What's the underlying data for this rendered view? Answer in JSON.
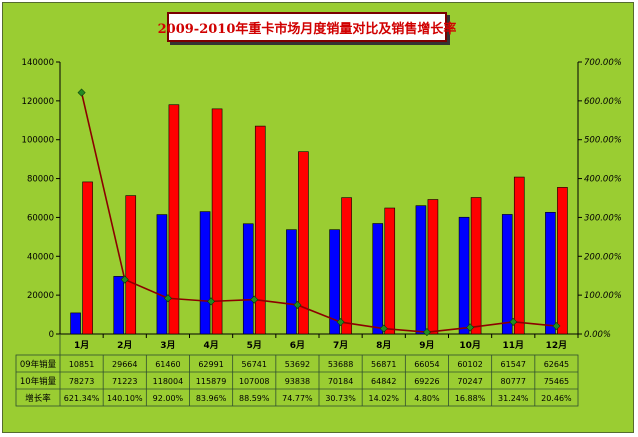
{
  "chart_data": {
    "type": "bar",
    "title": "2009-2010年重卡市场月度销量对比及销售增长率",
    "categories": [
      "1月",
      "2月",
      "3月",
      "4月",
      "5月",
      "6月",
      "7月",
      "8月",
      "9月",
      "10月",
      "11月",
      "12月"
    ],
    "series": [
      {
        "name": "09年销量",
        "type": "bar",
        "color": "#0000ff",
        "axis": "left",
        "values": [
          10851,
          29664,
          61460,
          62991,
          56741,
          53692,
          53688,
          56871,
          66054,
          60102,
          61547,
          62645
        ]
      },
      {
        "name": "10年销量",
        "type": "bar",
        "color": "#ff0000",
        "axis": "left",
        "values": [
          78273,
          71223,
          118004,
          115879,
          107008,
          93838,
          70184,
          64842,
          69226,
          70247,
          80777,
          75465
        ]
      },
      {
        "name": "增长率",
        "type": "line",
        "color": "#8b0000",
        "marker_color": "#228b22",
        "axis": "right",
        "values": [
          621.34,
          140.1,
          92.0,
          83.96,
          88.59,
          74.77,
          30.73,
          14.02,
          4.8,
          16.88,
          31.24,
          20.46
        ]
      }
    ],
    "ylim_left": [
      0,
      140000
    ],
    "left_ticks": [
      "0",
      "20000",
      "40000",
      "60000",
      "80000",
      "100000",
      "120000",
      "140000"
    ],
    "ylim_right": [
      0,
      700
    ],
    "right_ticks": [
      "0.00%",
      "100.00%",
      "200.00%",
      "300.00%",
      "400.00%",
      "500.00%",
      "600.00%",
      "700.00%"
    ],
    "table": {
      "row_labels": [
        "09年销量",
        "10年销量",
        "增长率"
      ],
      "rows": [
        [
          "10851",
          "29664",
          "61460",
          "62991",
          "56741",
          "53692",
          "53688",
          "56871",
          "66054",
          "60102",
          "61547",
          "62645"
        ],
        [
          "78273",
          "71223",
          "118004",
          "115879",
          "107008",
          "93838",
          "70184",
          "64842",
          "69226",
          "70247",
          "80777",
          "75465"
        ],
        [
          "621.34%",
          "140.10%",
          "92.00%",
          "83.96%",
          "88.59%",
          "74.77%",
          "30.73%",
          "14.02%",
          "4.80%",
          "16.88%",
          "31.24%",
          "20.46%"
        ]
      ]
    },
    "grid": false,
    "legend": "data-table"
  }
}
